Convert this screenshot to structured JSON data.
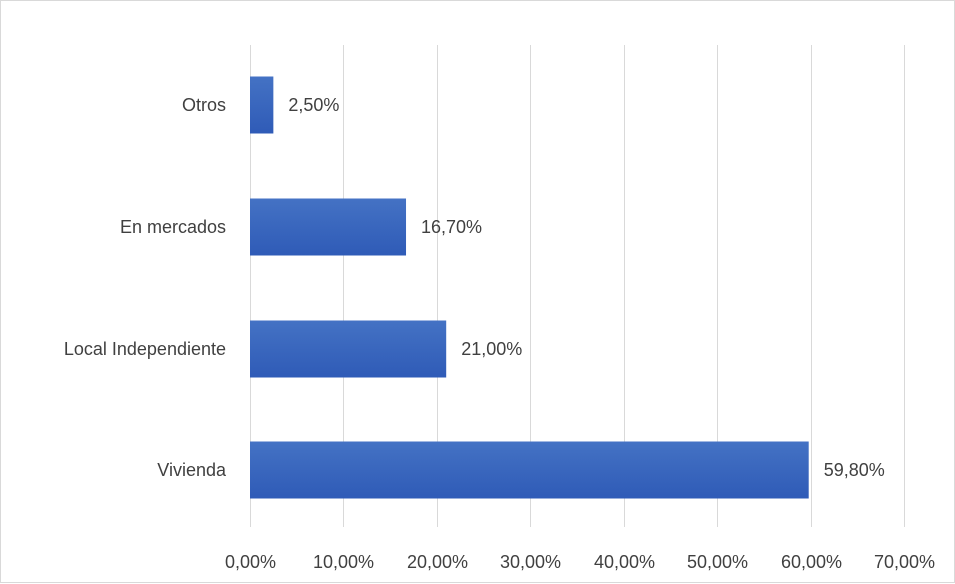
{
  "chart_data": {
    "type": "bar",
    "orientation": "horizontal",
    "categories": [
      "Otros",
      "En mercados",
      "Local Independiente",
      "Vivienda"
    ],
    "values": [
      2.5,
      16.7,
      21.0,
      59.8
    ],
    "data_labels": [
      "2,50%",
      "16,70%",
      "21,00%",
      "59,80%"
    ],
    "xlim": [
      0,
      70
    ],
    "x_ticks": [
      0,
      10,
      20,
      30,
      40,
      50,
      60,
      70
    ],
    "x_tick_labels": [
      "0,00%",
      "10,00%",
      "20,00%",
      "30,00%",
      "40,00%",
      "50,00%",
      "60,00%",
      "70,00%"
    ],
    "grid": "vertical",
    "legend": "none",
    "bar_color": "#4472C4",
    "bar_color_dark": "#2F5BB7",
    "title": "",
    "xlabel": "",
    "ylabel": ""
  }
}
